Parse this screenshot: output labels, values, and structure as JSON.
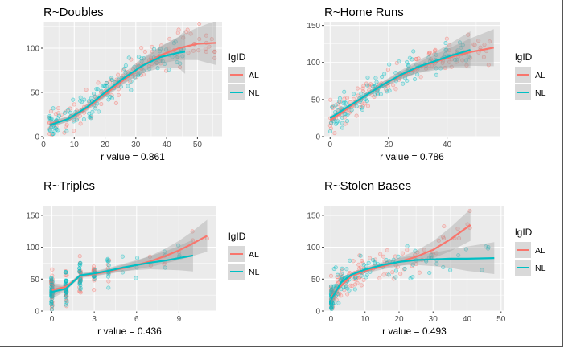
{
  "colors": {
    "AL": "#F8766D",
    "NL": "#00BFC4",
    "panel": "#EBEBEB",
    "grid": "#FFFFFF",
    "ribbon": "#999999"
  },
  "legend": {
    "title": "lgID",
    "items": [
      "AL",
      "NL"
    ]
  },
  "chart_data": [
    {
      "type": "scatter",
      "title": "R~Doubles",
      "xlabel": "r value =  0.861",
      "xlim": [
        0,
        58
      ],
      "ylim": [
        0,
        130
      ],
      "xticks": [
        0,
        10,
        20,
        30,
        40,
        50
      ],
      "yticks": [
        0,
        50,
        100
      ],
      "series": [
        {
          "name": "AL",
          "fit": [
            [
              2,
              14
            ],
            [
              8,
              20
            ],
            [
              14,
              32
            ],
            [
              20,
              48
            ],
            [
              26,
              64
            ],
            [
              32,
              80
            ],
            [
              38,
              92
            ],
            [
              44,
              100
            ],
            [
              50,
              105
            ],
            [
              56,
              106
            ]
          ]
        },
        {
          "name": "NL",
          "fit": [
            [
              2,
              13
            ],
            [
              8,
              20
            ],
            [
              14,
              33
            ],
            [
              20,
              50
            ],
            [
              26,
              66
            ],
            [
              32,
              80
            ],
            [
              38,
              90
            ],
            [
              44,
              95
            ],
            [
              46,
              96
            ]
          ]
        }
      ]
    },
    {
      "type": "scatter",
      "title": "R~Home Runs",
      "xlabel": "r value =  0.786",
      "xlim": [
        -2,
        58
      ],
      "ylim": [
        0,
        155
      ],
      "xticks": [
        0,
        20,
        40
      ],
      "yticks": [
        0,
        50,
        100,
        150
      ],
      "series": [
        {
          "name": "AL",
          "fit": [
            [
              0,
              22
            ],
            [
              6,
              38
            ],
            [
              12,
              55
            ],
            [
              18,
              70
            ],
            [
              24,
              82
            ],
            [
              30,
              93
            ],
            [
              36,
              101
            ],
            [
              42,
              108
            ],
            [
              48,
              114
            ],
            [
              56,
              120
            ]
          ]
        },
        {
          "name": "NL",
          "fit": [
            [
              0,
              25
            ],
            [
              6,
              40
            ],
            [
              12,
              55
            ],
            [
              18,
              70
            ],
            [
              24,
              83
            ],
            [
              30,
              94
            ],
            [
              36,
              102
            ],
            [
              42,
              110
            ],
            [
              48,
              117
            ]
          ]
        }
      ]
    },
    {
      "type": "scatter",
      "title": "R~Triples",
      "xlabel": "r value =  0.436",
      "xlim": [
        -0.6,
        11.6
      ],
      "ylim": [
        0,
        165
      ],
      "xticks": [
        0,
        3,
        6,
        9
      ],
      "yticks": [
        0,
        50,
        100,
        150
      ],
      "series": [
        {
          "name": "AL",
          "fit": [
            [
              0,
              33
            ],
            [
              1,
              38
            ],
            [
              2,
              55
            ],
            [
              3,
              58
            ],
            [
              4,
              62
            ],
            [
              5,
              67
            ],
            [
              6,
              72
            ],
            [
              7,
              78
            ],
            [
              8,
              86
            ],
            [
              9,
              95
            ],
            [
              10,
              106
            ],
            [
              11,
              118
            ]
          ]
        },
        {
          "name": "NL",
          "fit": [
            [
              0,
              30
            ],
            [
              1,
              35
            ],
            [
              2,
              56
            ],
            [
              3,
              59
            ],
            [
              4,
              63
            ],
            [
              5,
              68
            ],
            [
              6,
              72
            ],
            [
              7,
              76
            ],
            [
              8,
              79
            ],
            [
              9,
              83
            ],
            [
              10,
              87
            ]
          ]
        }
      ]
    },
    {
      "type": "scatter",
      "title": "R~Stolen Bases",
      "xlabel": "r value =  0.493",
      "xlim": [
        -2,
        51
      ],
      "ylim": [
        0,
        165
      ],
      "xticks": [
        0,
        10,
        20,
        30,
        40,
        50
      ],
      "yticks": [
        0,
        50,
        100,
        150
      ],
      "series": [
        {
          "name": "AL",
          "fit": [
            [
              0,
              22
            ],
            [
              3,
              40
            ],
            [
              6,
              55
            ],
            [
              10,
              63
            ],
            [
              15,
              70
            ],
            [
              20,
              77
            ],
            [
              25,
              85
            ],
            [
              30,
              96
            ],
            [
              35,
              112
            ],
            [
              41,
              135
            ]
          ]
        },
        {
          "name": "NL",
          "fit": [
            [
              0,
              18
            ],
            [
              3,
              45
            ],
            [
              6,
              57
            ],
            [
              10,
              65
            ],
            [
              15,
              72
            ],
            [
              20,
              77
            ],
            [
              25,
              80
            ],
            [
              30,
              81
            ],
            [
              35,
              82
            ],
            [
              40,
              82
            ],
            [
              48,
              83
            ]
          ]
        }
      ]
    }
  ]
}
